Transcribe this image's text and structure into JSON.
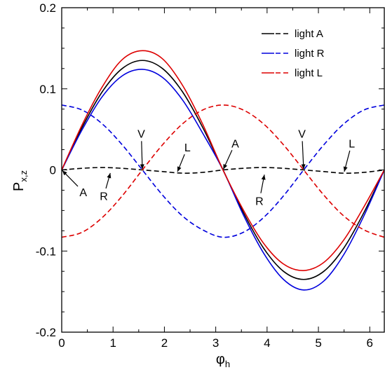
{
  "chart_data": {
    "type": "line",
    "xlabel": "φ",
    "xlabel_sub": "h",
    "ylabel": "P",
    "ylabel_sub": "x,z",
    "xlim": [
      0,
      6.2832
    ],
    "ylim": [
      -0.2,
      0.2
    ],
    "xticks": [
      0,
      1,
      2,
      3,
      4,
      5,
      6
    ],
    "xtick_labels": [
      "0",
      "1",
      "2",
      "3",
      "4",
      "5",
      "6"
    ],
    "yticks": [
      -0.2,
      -0.1,
      0,
      0.1,
      0.2
    ],
    "ytick_labels": [
      "-0.2",
      "-0.1",
      "0",
      "0.1",
      "0.2"
    ],
    "grid": false,
    "legend_position": "top-right",
    "series": [
      {
        "name": "light A",
        "component": "x",
        "style": "solid",
        "color": "#000000",
        "x": [
          0,
          0.3927,
          0.7854,
          1.1781,
          1.5708,
          1.9635,
          2.3562,
          2.7489,
          3.1416,
          3.5343,
          3.927,
          4.3197,
          4.7124,
          5.1051,
          5.4978,
          5.8905,
          6.2832
        ],
        "values": [
          0.0,
          0.052,
          0.096,
          0.125,
          0.135,
          0.125,
          0.096,
          0.052,
          0.0,
          -0.052,
          -0.096,
          -0.125,
          -0.135,
          -0.125,
          -0.096,
          -0.052,
          0.0
        ]
      },
      {
        "name": "light A",
        "component": "z",
        "style": "dashed",
        "color": "#000000",
        "x": [
          0,
          0.3927,
          0.7854,
          1.1781,
          1.5708,
          1.9635,
          2.3562,
          2.7489,
          3.1416,
          3.5343,
          3.927,
          4.3197,
          4.7124,
          5.1051,
          5.4978,
          5.8905,
          6.2832
        ],
        "values": [
          0.0,
          0.002,
          0.003,
          0.002,
          0.0,
          -0.002,
          -0.004,
          -0.003,
          0.0,
          0.002,
          0.003,
          0.002,
          0.0,
          -0.002,
          -0.004,
          -0.003,
          0.0
        ]
      },
      {
        "name": "light R",
        "component": "x",
        "style": "solid",
        "color": "#0000dd",
        "x": [
          0,
          0.3927,
          0.7854,
          1.1781,
          1.5708,
          1.9635,
          2.3562,
          2.7489,
          3.1416,
          3.5343,
          3.927,
          4.3197,
          4.7124,
          5.1051,
          5.4978,
          5.8905,
          6.2832
        ],
        "values": [
          0.0,
          0.049,
          0.09,
          0.116,
          0.124,
          0.114,
          0.086,
          0.045,
          0.0,
          -0.055,
          -0.102,
          -0.135,
          -0.148,
          -0.137,
          -0.104,
          -0.056,
          0.0
        ]
      },
      {
        "name": "light R",
        "component": "z",
        "style": "dashed",
        "color": "#0000dd",
        "x": [
          0,
          0.3927,
          0.7854,
          1.1781,
          1.5708,
          1.9635,
          2.3562,
          2.7489,
          3.1416,
          3.5343,
          3.927,
          4.3197,
          4.7124,
          5.1051,
          5.4978,
          5.8905,
          6.2832
        ],
        "values": [
          0.08,
          0.074,
          0.057,
          0.031,
          0.0,
          -0.031,
          -0.057,
          -0.074,
          -0.083,
          -0.077,
          -0.059,
          -0.032,
          0.0,
          0.031,
          0.057,
          0.074,
          0.08
        ]
      },
      {
        "name": "light L",
        "component": "x",
        "style": "solid",
        "color": "#dd0000",
        "x": [
          0,
          0.3927,
          0.7854,
          1.1781,
          1.5708,
          1.9635,
          2.3562,
          2.7489,
          3.1416,
          3.5343,
          3.927,
          4.3197,
          4.7124,
          5.1051,
          5.4978,
          5.8905,
          6.2832
        ],
        "values": [
          0.0,
          0.055,
          0.102,
          0.136,
          0.147,
          0.137,
          0.104,
          0.056,
          0.0,
          -0.049,
          -0.09,
          -0.116,
          -0.124,
          -0.114,
          -0.086,
          -0.045,
          0.0
        ]
      },
      {
        "name": "light L",
        "component": "z",
        "style": "dashed",
        "color": "#dd0000",
        "x": [
          0,
          0.3927,
          0.7854,
          1.1781,
          1.5708,
          1.9635,
          2.3562,
          2.7489,
          3.1416,
          3.5343,
          3.927,
          4.3197,
          4.7124,
          5.1051,
          5.4978,
          5.8905,
          6.2832
        ],
        "values": [
          -0.083,
          -0.077,
          -0.059,
          -0.032,
          0.0,
          0.031,
          0.057,
          0.074,
          0.08,
          0.074,
          0.057,
          0.031,
          0.0,
          -0.031,
          -0.057,
          -0.074,
          -0.083
        ]
      }
    ],
    "legend": [
      {
        "label": "light A",
        "color": "#000000"
      },
      {
        "label": "light R",
        "color": "#0000dd"
      },
      {
        "label": "light L",
        "color": "#dd0000"
      }
    ],
    "annotations": [
      {
        "text": "A",
        "x": 0.42,
        "y": -0.027,
        "arrow_to": [
          0.0,
          0.0
        ]
      },
      {
        "text": "R",
        "x": 0.82,
        "y": -0.032,
        "arrow_to": [
          0.95,
          -0.003
        ]
      },
      {
        "text": "V",
        "x": 1.55,
        "y": 0.045,
        "arrow_to": [
          1.5708,
          0.0
        ]
      },
      {
        "text": "L",
        "x": 2.45,
        "y": 0.028,
        "arrow_to": [
          2.25,
          -0.003
        ]
      },
      {
        "text": "A",
        "x": 3.38,
        "y": 0.033,
        "arrow_to": [
          3.1416,
          0.0
        ]
      },
      {
        "text": "R",
        "x": 3.85,
        "y": -0.038,
        "arrow_to": [
          3.95,
          -0.005
        ]
      },
      {
        "text": "V",
        "x": 4.68,
        "y": 0.045,
        "arrow_to": [
          4.7124,
          0.0
        ]
      },
      {
        "text": "L",
        "x": 5.65,
        "y": 0.033,
        "arrow_to": [
          5.5,
          -0.003
        ]
      }
    ]
  }
}
